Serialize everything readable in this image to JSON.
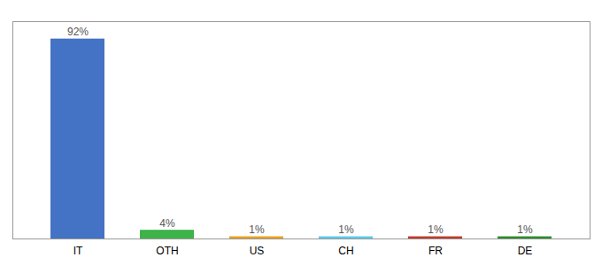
{
  "chart_data": {
    "type": "bar",
    "categories": [
      "IT",
      "OTH",
      "US",
      "CH",
      "FR",
      "DE"
    ],
    "values": [
      92,
      4,
      1,
      1,
      1,
      1
    ],
    "value_labels": [
      "92%",
      "4%",
      "1%",
      "1%",
      "1%",
      "1%"
    ],
    "colors": [
      "#4472c4",
      "#3db34a",
      "#e8a020",
      "#5bc8e8",
      "#c0392b",
      "#2e8b2e"
    ],
    "ylim": [
      0,
      100
    ],
    "grid": false,
    "data_labels": true,
    "tick_labels": "x"
  }
}
